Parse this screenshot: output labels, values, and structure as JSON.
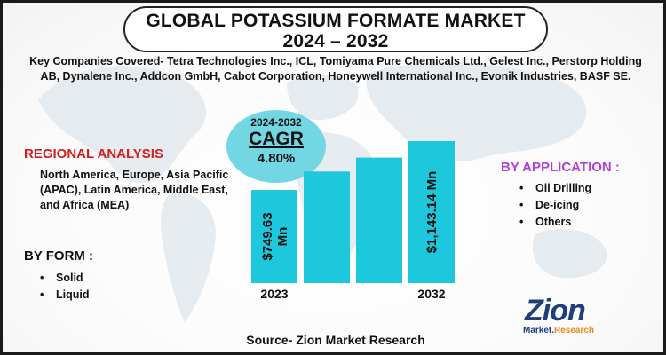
{
  "title": {
    "line1": "GLOBAL POTASSIUM FORMATE MARKET",
    "line2": "2024 – 2032"
  },
  "companies": "Key Companies Covered- Tetra Technologies Inc., ICL, Tomiyama Pure Chemicals Ltd., Gelest Inc., Perstorp Holding AB, Dynalene Inc., Addcon GmbH, Cabot Corporation, Honeywell International Inc., Evonik Industries, BASF SE.",
  "cagr": {
    "period": "2024-2032",
    "label": "CAGR",
    "value": "4.80%"
  },
  "regional": {
    "heading": "REGIONAL ANALYSIS",
    "text": "North America, Europe, Asia Pacific (APAC), Latin America, Middle East, and Africa (MEA)"
  },
  "form": {
    "heading": "BY FORM :",
    "items": [
      "Solid",
      "Liquid"
    ]
  },
  "application": {
    "heading": "BY APPLICATION :",
    "items": [
      "Oil Drilling",
      "De-icing",
      "Others"
    ]
  },
  "source": "Source- Zion Market Research",
  "logo": {
    "name": "Zion",
    "sub1": "Market.",
    "sub2": "Research"
  },
  "colors": {
    "bar": "#1ec8dc",
    "cagr_bubble": "#73d6e3",
    "regional_heading": "#d21f1f",
    "application_heading": "#b23fd8",
    "logo": "#1f3f7a"
  },
  "chart_data": {
    "type": "bar",
    "categories": [
      "2023",
      "",
      "",
      "2032"
    ],
    "values": [
      749.63,
      898,
      1010,
      1143.14
    ],
    "data_labels": [
      "$749.63 Mn",
      "",
      "",
      "$1,143.14 Mn"
    ],
    "title": "",
    "xlabel": "",
    "ylabel": "",
    "ylim": [
      0,
      1200
    ],
    "grid": false,
    "legend": "none"
  }
}
